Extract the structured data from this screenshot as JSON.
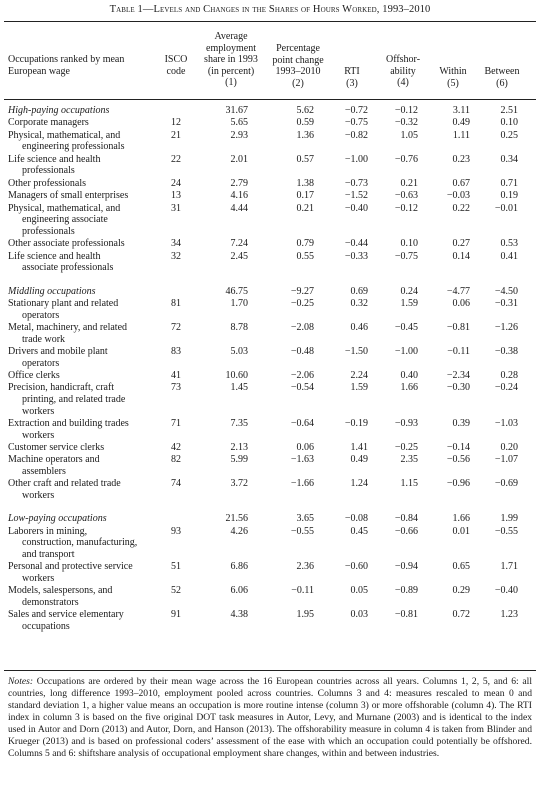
{
  "title": "Table 1—Levels and Changes in the Shares of Hours Worked, 1993–2010",
  "headers": {
    "occupations": [
      "Occupations ranked by mean",
      "European wage"
    ],
    "isco": [
      "ISCO",
      "code"
    ],
    "col1": [
      "Average",
      "employment",
      "share in 1993",
      "(in percent)",
      "(1)"
    ],
    "col2": [
      "Percentage",
      "point change",
      "1993–2010",
      "(2)"
    ],
    "col3": [
      "RTI",
      "(3)"
    ],
    "col4": [
      "Offshor-",
      "ability",
      "(4)"
    ],
    "col5": [
      "Within",
      "(5)"
    ],
    "col6": [
      "Between",
      "(6)"
    ]
  },
  "rows": [
    {
      "label": [
        "High-paying occupations"
      ],
      "italic": true,
      "isco": "",
      "c1": "31.67",
      "c2": "5.62",
      "c3": "−0.72",
      "c4": "−0.12",
      "c5": "3.11",
      "c6": "2.51"
    },
    {
      "label": [
        "Corporate managers"
      ],
      "isco": "12",
      "c1": "5.65",
      "c2": "0.59",
      "c3": "−0.75",
      "c4": "−0.32",
      "c5": "0.49",
      "c6": "0.10"
    },
    {
      "label": [
        "Physical, mathematical, and",
        "engineering professionals"
      ],
      "isco": "21",
      "c1": "2.93",
      "c2": "1.36",
      "c3": "−0.82",
      "c4": "1.05",
      "c5": "1.11",
      "c6": "0.25"
    },
    {
      "label": [
        "Life science and health",
        "professionals"
      ],
      "isco": "22",
      "c1": "2.01",
      "c2": "0.57",
      "c3": "−1.00",
      "c4": "−0.76",
      "c5": "0.23",
      "c6": "0.34"
    },
    {
      "label": [
        "Other professionals"
      ],
      "isco": "24",
      "c1": "2.79",
      "c2": "1.38",
      "c3": "−0.73",
      "c4": "0.21",
      "c5": "0.67",
      "c6": "0.71"
    },
    {
      "label": [
        "Managers of small enterprises"
      ],
      "isco": "13",
      "c1": "4.16",
      "c2": "0.17",
      "c3": "−1.52",
      "c4": "−0.63",
      "c5": "−0.03",
      "c6": "0.19"
    },
    {
      "label": [
        "Physical, mathematical, and",
        "engineering associate",
        "professionals"
      ],
      "isco": "31",
      "c1": "4.44",
      "c2": "0.21",
      "c3": "−0.40",
      "c4": "−0.12",
      "c5": "0.22",
      "c6": "−0.01"
    },
    {
      "label": [
        "Other associate professionals"
      ],
      "isco": "34",
      "c1": "7.24",
      "c2": "0.79",
      "c3": "−0.44",
      "c4": "0.10",
      "c5": "0.27",
      "c6": "0.53"
    },
    {
      "label": [
        "Life science and health",
        "associate professionals"
      ],
      "isco": "32",
      "c1": "2.45",
      "c2": "0.55",
      "c3": "−0.33",
      "c4": "−0.75",
      "c5": "0.14",
      "c6": "0.41"
    },
    {
      "label": [
        "Middling occupations"
      ],
      "italic": true,
      "isco": "",
      "c1": "46.75",
      "c2": "−9.27",
      "c3": "0.69",
      "c4": "0.24",
      "c5": "−4.77",
      "c6": "−4.50"
    },
    {
      "label": [
        "Stationary plant and related",
        "operators"
      ],
      "isco": "81",
      "c1": "1.70",
      "c2": "−0.25",
      "c3": "0.32",
      "c4": "1.59",
      "c5": "0.06",
      "c6": "−0.31"
    },
    {
      "label": [
        "Metal, machinery, and related",
        "trade work"
      ],
      "isco": "72",
      "c1": "8.78",
      "c2": "−2.08",
      "c3": "0.46",
      "c4": "−0.45",
      "c5": "−0.81",
      "c6": "−1.26"
    },
    {
      "label": [
        "Drivers and mobile plant",
        "operators"
      ],
      "isco": "83",
      "c1": "5.03",
      "c2": "−0.48",
      "c3": "−1.50",
      "c4": "−1.00",
      "c5": "−0.11",
      "c6": "−0.38"
    },
    {
      "label": [
        "Office clerks"
      ],
      "isco": "41",
      "c1": "10.60",
      "c2": "−2.06",
      "c3": "2.24",
      "c4": "0.40",
      "c5": "−2.34",
      "c6": "0.28"
    },
    {
      "label": [
        "Precision, handicraft, craft",
        "printing, and related trade",
        "workers"
      ],
      "isco": "73",
      "c1": "1.45",
      "c2": "−0.54",
      "c3": "1.59",
      "c4": "1.66",
      "c5": "−0.30",
      "c6": "−0.24"
    },
    {
      "label": [
        "Extraction and building trades",
        "workers"
      ],
      "isco": "71",
      "c1": "7.35",
      "c2": "−0.64",
      "c3": "−0.19",
      "c4": "−0.93",
      "c5": "0.39",
      "c6": "−1.03"
    },
    {
      "label": [
        "Customer service clerks"
      ],
      "isco": "42",
      "c1": "2.13",
      "c2": "0.06",
      "c3": "1.41",
      "c4": "−0.25",
      "c5": "−0.14",
      "c6": "0.20"
    },
    {
      "label": [
        "Machine operators and",
        "assemblers"
      ],
      "isco": "82",
      "c1": "5.99",
      "c2": "−1.63",
      "c3": "0.49",
      "c4": "2.35",
      "c5": "−0.56",
      "c6": "−1.07"
    },
    {
      "label": [
        "Other craft and related trade",
        "workers"
      ],
      "isco": "74",
      "c1": "3.72",
      "c2": "−1.66",
      "c3": "1.24",
      "c4": "1.15",
      "c5": "−0.96",
      "c6": "−0.69"
    },
    {
      "label": [
        "Low-paying occupations"
      ],
      "italic": true,
      "isco": "",
      "c1": "21.56",
      "c2": "3.65",
      "c3": "−0.08",
      "c4": "−0.84",
      "c5": "1.66",
      "c6": "1.99"
    },
    {
      "label": [
        "Laborers in mining,",
        "construction, manufacturing,",
        "and transport"
      ],
      "isco": "93",
      "c1": "4.26",
      "c2": "−0.55",
      "c3": "0.45",
      "c4": "−0.66",
      "c5": "0.01",
      "c6": "−0.55"
    },
    {
      "label": [
        "Personal and protective service",
        "workers"
      ],
      "isco": "51",
      "c1": "6.86",
      "c2": "2.36",
      "c3": "−0.60",
      "c4": "−0.94",
      "c5": "0.65",
      "c6": "1.71"
    },
    {
      "label": [
        "Models, salespersons, and",
        "demonstrators"
      ],
      "isco": "52",
      "c1": "6.06",
      "c2": "−0.11",
      "c3": "0.05",
      "c4": "−0.89",
      "c5": "0.29",
      "c6": "−0.40"
    },
    {
      "label": [
        "Sales and service elementary",
        "occupations"
      ],
      "isco": "91",
      "c1": "4.38",
      "c2": "1.95",
      "c3": "0.03",
      "c4": "−0.81",
      "c5": "0.72",
      "c6": "1.23"
    }
  ],
  "notes_label": "Notes:",
  "notes": "Occupations are ordered by their mean wage across the 16 European countries across all years. Columns 1, 2, 5, and 6: all countries, long difference 1993–2010, employment pooled across countries. Columns 3 and 4: measures rescaled to mean 0 and standard deviation 1, a higher value means an occupation is more routine intense (column 3) or more offshorable (column 4). The RTI index in column 3 is based on the five original DOT task measures in Autor, Levy, and Murnane (2003) and is identical to the index used in Autor and Dorn (2013) and Autor, Dorn, and Hanson (2013). The offshorability measure in column 4 is taken from Blinder and Krueger (2013) and is based on professional coders’ assessment of the ease with which an occupation could potentially be offshored. Columns 5 and 6: shiftshare analysis of occupational employment share changes, within and between industries."
}
